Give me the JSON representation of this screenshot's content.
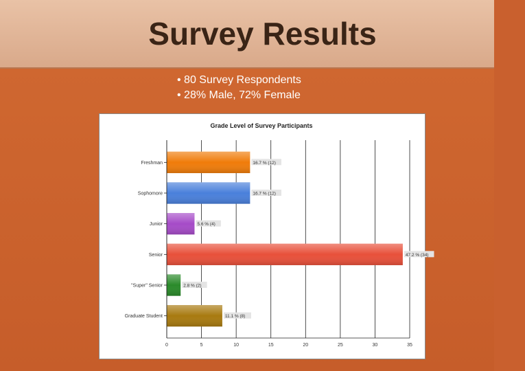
{
  "slide": {
    "title": "Survey Results",
    "bullets": [
      "80 Survey Respondents",
      "28% Male, 72% Female"
    ]
  },
  "colors": {
    "header_band": "#e6bc9f",
    "body_band": "#c9602e",
    "text_light": "#ffffff",
    "title_text": "#3a2416"
  },
  "chart_data": {
    "type": "bar",
    "orientation": "horizontal",
    "title": "Grade Level of Survey Participants",
    "categories": [
      "Freshman",
      "Sophomore",
      "Junior",
      "Senior",
      "\"Super\" Senior",
      "Graduate Student"
    ],
    "values": [
      12,
      12,
      4,
      34,
      2,
      8
    ],
    "data_labels": [
      "16.7 % (12)",
      "16.7 % (12)",
      "5.6 % (4)",
      "47.2 % (34)",
      "2.8 % (2)",
      "11.1 % (8)"
    ],
    "bar_colors": [
      "#f07c0a",
      "#4a80db",
      "#a64bc8",
      "#e8503a",
      "#2a8a2a",
      "#a87a10"
    ],
    "xlim": [
      0,
      35
    ],
    "xticks": [
      0,
      5,
      10,
      15,
      20,
      25,
      30,
      35
    ],
    "xlabel": "",
    "ylabel": "",
    "grid": true,
    "legend": "none"
  }
}
